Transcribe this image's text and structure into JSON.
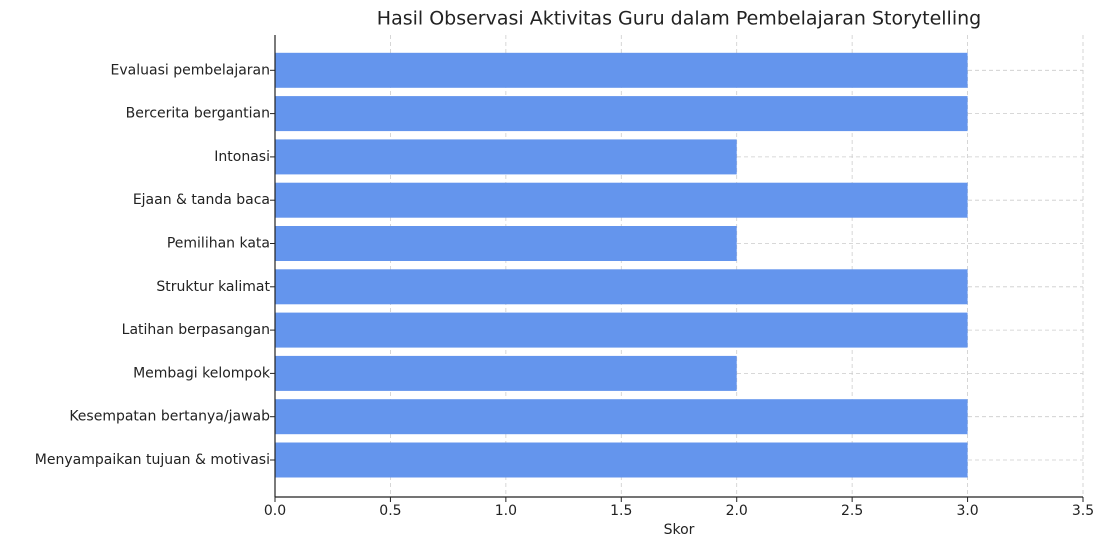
{
  "chart_data": {
    "type": "barh",
    "title": "Hasil Observasi Aktivitas Guru dalam Pembelajaran Storytelling",
    "x_label": "Skor",
    "categories": [
      "Menyampaikan tujuan & motivasi",
      "Kesempatan bertanya/jawab",
      "Membagi kelompok",
      "Latihan berpasangan",
      "Struktur kalimat",
      "Pemilihan kata",
      "Ejaan & tanda baca",
      "Intonasi",
      "Bercerita bergantian",
      "Evaluasi pembelajaran"
    ],
    "values": [
      3,
      3,
      2,
      3,
      3,
      2,
      3,
      2,
      3,
      3
    ],
    "color": "#6495ed",
    "xlim": [
      0,
      3.5
    ],
    "xticks": [
      {
        "value": 0,
        "label": "0.0"
      },
      0.5,
      {
        "value": 1,
        "label": "1.0"
      },
      1.5,
      {
        "value": 2,
        "label": "2.0"
      },
      2.5,
      {
        "value": 3,
        "label": "3.0"
      },
      3.5
    ],
    "grid": true
  }
}
